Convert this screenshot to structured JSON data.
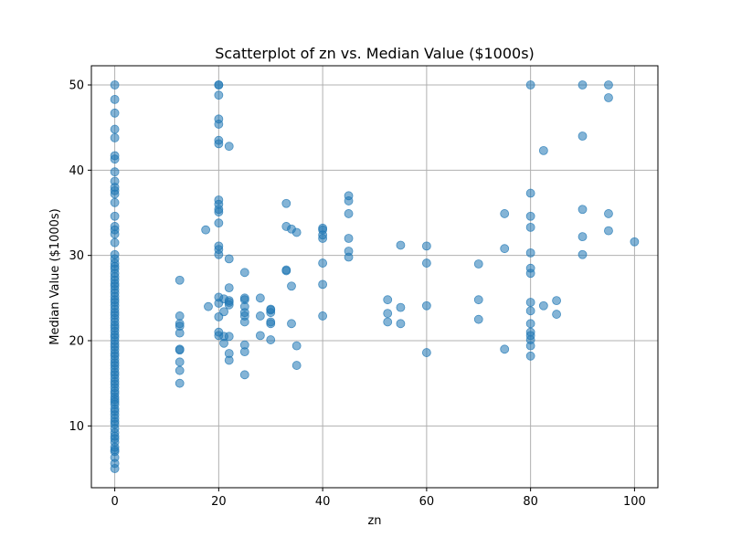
{
  "chart_data": {
    "type": "scatter",
    "title": "Scatterplot of zn vs. Median Value ($1000s)",
    "xlabel": "zn",
    "ylabel": "Median Value ($1000s)",
    "xlim": [
      -4.5,
      104.5
    ],
    "ylim": [
      2.75,
      52.25
    ],
    "xticks": [
      0,
      20,
      40,
      60,
      80,
      100
    ],
    "yticks": [
      10,
      20,
      30,
      40,
      50
    ],
    "grid": true,
    "point_color": "#1f77b4",
    "point_alpha": 0.55,
    "points": [
      [
        0,
        5
      ],
      [
        0,
        5.6
      ],
      [
        0,
        6.3
      ],
      [
        0,
        7
      ],
      [
        0,
        7.2
      ],
      [
        0,
        7.5
      ],
      [
        0,
        8.1
      ],
      [
        0,
        8.5
      ],
      [
        0,
        8.8
      ],
      [
        0,
        9.2
      ],
      [
        0,
        9.7
      ],
      [
        0,
        10.2
      ],
      [
        0,
        10.5
      ],
      [
        0,
        10.9
      ],
      [
        0,
        11.3
      ],
      [
        0,
        11.7
      ],
      [
        0,
        12
      ],
      [
        0,
        12.5
      ],
      [
        0,
        12.8
      ],
      [
        0,
        13.1
      ],
      [
        0,
        13.4
      ],
      [
        0,
        13.8
      ],
      [
        0,
        14.1
      ],
      [
        0,
        14.5
      ],
      [
        0,
        14.9
      ],
      [
        0,
        15.2
      ],
      [
        0,
        15.6
      ],
      [
        0,
        16
      ],
      [
        0,
        16.3
      ],
      [
        0,
        16.7
      ],
      [
        0,
        17.1
      ],
      [
        0,
        17.4
      ],
      [
        0,
        17.8
      ],
      [
        0,
        18.2
      ],
      [
        0,
        18.5
      ],
      [
        0,
        18.9
      ],
      [
        0,
        19.3
      ],
      [
        0,
        19.6
      ],
      [
        0,
        20
      ],
      [
        0,
        20.4
      ],
      [
        0,
        20.7
      ],
      [
        0,
        21.1
      ],
      [
        0,
        21.5
      ],
      [
        0,
        21.8
      ],
      [
        0,
        22.2
      ],
      [
        0,
        22.6
      ],
      [
        0,
        23
      ],
      [
        0,
        23.3
      ],
      [
        0,
        23.7
      ],
      [
        0,
        24.1
      ],
      [
        0,
        24.5
      ],
      [
        0,
        24.8
      ],
      [
        0,
        25.2
      ],
      [
        0,
        25.6
      ],
      [
        0,
        26
      ],
      [
        0,
        26.4
      ],
      [
        0,
        26.7
      ],
      [
        0,
        27.1
      ],
      [
        0,
        27.5
      ],
      [
        0,
        27.9
      ],
      [
        0,
        28.4
      ],
      [
        0,
        28.7
      ],
      [
        0,
        29.1
      ],
      [
        0,
        29.6
      ],
      [
        0,
        30.1
      ],
      [
        0,
        31.5
      ],
      [
        0,
        32.5
      ],
      [
        0,
        33
      ],
      [
        0,
        33.4
      ],
      [
        0,
        34.6
      ],
      [
        0,
        36.2
      ],
      [
        0,
        37.2
      ],
      [
        0,
        37.6
      ],
      [
        0,
        38
      ],
      [
        0,
        38.7
      ],
      [
        0,
        39.8
      ],
      [
        0,
        41.3
      ],
      [
        0,
        41.7
      ],
      [
        0,
        43.8
      ],
      [
        0,
        44.8
      ],
      [
        0,
        46.7
      ],
      [
        0,
        48.3
      ],
      [
        0,
        50
      ],
      [
        12.5,
        15
      ],
      [
        12.5,
        16.5
      ],
      [
        12.5,
        17.5
      ],
      [
        12.5,
        18.9
      ],
      [
        12.5,
        19
      ],
      [
        12.5,
        20.9
      ],
      [
        12.5,
        21.7
      ],
      [
        12.5,
        22
      ],
      [
        12.5,
        22.9
      ],
      [
        12.5,
        27.1
      ],
      [
        17.5,
        33
      ],
      [
        18,
        24
      ],
      [
        20,
        20.6
      ],
      [
        20,
        21
      ],
      [
        20,
        22.8
      ],
      [
        20,
        24.4
      ],
      [
        20,
        25.1
      ],
      [
        20,
        30.1
      ],
      [
        20,
        30.7
      ],
      [
        20,
        31.1
      ],
      [
        20,
        33.8
      ],
      [
        20,
        35.1
      ],
      [
        20,
        35.4
      ],
      [
        20,
        36
      ],
      [
        20,
        36.5
      ],
      [
        20,
        43.1
      ],
      [
        20,
        43.5
      ],
      [
        20,
        45.4
      ],
      [
        20,
        46
      ],
      [
        20,
        48.8
      ],
      [
        20,
        50
      ],
      [
        20,
        50
      ],
      [
        21,
        19.7
      ],
      [
        21,
        20.5
      ],
      [
        21,
        23.4
      ],
      [
        21,
        24.9
      ],
      [
        22,
        17.7
      ],
      [
        22,
        18.5
      ],
      [
        22,
        20.5
      ],
      [
        22,
        24.2
      ],
      [
        22,
        24.5
      ],
      [
        22,
        24.7
      ],
      [
        22,
        26.2
      ],
      [
        22,
        29.6
      ],
      [
        22,
        42.8
      ],
      [
        25,
        16
      ],
      [
        25,
        18.7
      ],
      [
        25,
        19.5
      ],
      [
        25,
        22.2
      ],
      [
        25,
        22.9
      ],
      [
        25,
        23.3
      ],
      [
        25,
        24
      ],
      [
        25,
        24.8
      ],
      [
        25,
        25
      ],
      [
        25,
        28
      ],
      [
        28,
        20.6
      ],
      [
        28,
        22.9
      ],
      [
        28,
        25
      ],
      [
        30,
        20.1
      ],
      [
        30,
        22
      ],
      [
        30,
        22.2
      ],
      [
        30,
        23.3
      ],
      [
        30,
        23.6
      ],
      [
        30,
        23.7
      ],
      [
        33,
        28.2
      ],
      [
        33,
        28.3
      ],
      [
        33,
        33.4
      ],
      [
        33,
        36.1
      ],
      [
        34,
        22
      ],
      [
        34,
        26.4
      ],
      [
        34,
        33.1
      ],
      [
        35,
        17.1
      ],
      [
        35,
        19.4
      ],
      [
        35,
        32.7
      ],
      [
        40,
        22.9
      ],
      [
        40,
        26.6
      ],
      [
        40,
        29.1
      ],
      [
        40,
        32
      ],
      [
        40,
        32.4
      ],
      [
        40,
        33
      ],
      [
        40,
        33.2
      ],
      [
        45,
        29.8
      ],
      [
        45,
        30.5
      ],
      [
        45,
        32
      ],
      [
        45,
        34.9
      ],
      [
        45,
        36.4
      ],
      [
        45,
        37
      ],
      [
        52.5,
        22.2
      ],
      [
        52.5,
        23.2
      ],
      [
        52.5,
        24.8
      ],
      [
        55,
        22
      ],
      [
        55,
        23.9
      ],
      [
        55,
        31.2
      ],
      [
        60,
        18.6
      ],
      [
        60,
        24.1
      ],
      [
        60,
        29.1
      ],
      [
        60,
        31.1
      ],
      [
        70,
        22.5
      ],
      [
        70,
        24.8
      ],
      [
        70,
        29
      ],
      [
        75,
        19
      ],
      [
        75,
        30.8
      ],
      [
        75,
        34.9
      ],
      [
        80,
        18.2
      ],
      [
        80,
        19.4
      ],
      [
        80,
        20.1
      ],
      [
        80,
        20.6
      ],
      [
        80,
        21
      ],
      [
        80,
        22
      ],
      [
        80,
        23.5
      ],
      [
        80,
        24.5
      ],
      [
        80,
        27.9
      ],
      [
        80,
        28.5
      ],
      [
        80,
        30.3
      ],
      [
        80,
        33.3
      ],
      [
        80,
        34.6
      ],
      [
        80,
        37.3
      ],
      [
        80,
        50
      ],
      [
        82.5,
        24.1
      ],
      [
        82.5,
        42.3
      ],
      [
        85,
        23.1
      ],
      [
        85,
        24.7
      ],
      [
        90,
        30.1
      ],
      [
        90,
        32.2
      ],
      [
        90,
        35.4
      ],
      [
        90,
        44
      ],
      [
        90,
        50
      ],
      [
        95,
        32.9
      ],
      [
        95,
        34.9
      ],
      [
        95,
        48.5
      ],
      [
        95,
        50
      ],
      [
        100,
        31.6
      ]
    ]
  }
}
